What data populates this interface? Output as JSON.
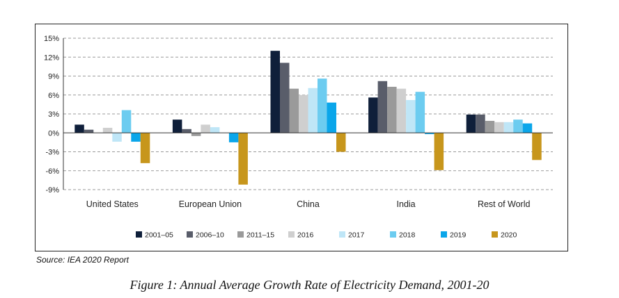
{
  "chart_data": {
    "type": "bar",
    "categories": [
      "United States",
      "European Union",
      "China",
      "India",
      "Rest of World"
    ],
    "series": [
      {
        "name": "2001–05",
        "color": "#0f1f3a",
        "values": [
          1.3,
          2.1,
          13.0,
          5.6,
          2.9
        ]
      },
      {
        "name": "2006–10",
        "color": "#595d6a",
        "values": [
          0.5,
          0.6,
          11.1,
          8.2,
          2.9
        ]
      },
      {
        "name": "2011–15",
        "color": "#9a9a9a",
        "values": [
          0.0,
          -0.5,
          7.0,
          7.3,
          1.9
        ]
      },
      {
        "name": "2016",
        "color": "#cfcfcf",
        "values": [
          0.8,
          1.3,
          6.0,
          7.0,
          1.7
        ]
      },
      {
        "name": "2017",
        "color": "#bfe6f7",
        "values": [
          -1.4,
          0.9,
          7.1,
          5.2,
          1.7
        ]
      },
      {
        "name": "2018",
        "color": "#6cccf0",
        "values": [
          3.6,
          0.0,
          8.6,
          6.5,
          2.1
        ]
      },
      {
        "name": "2019",
        "color": "#0aa6ea",
        "values": [
          -1.4,
          -1.5,
          4.8,
          -0.2,
          1.5
        ]
      },
      {
        "name": "2020",
        "color": "#c7961c",
        "values": [
          -4.8,
          -8.2,
          -3.0,
          -5.9,
          -4.3
        ]
      }
    ],
    "yticks": [
      "15%",
      "12%",
      "9%",
      "6%",
      "3%",
      "0%",
      "-3%",
      "-6%",
      "-9%"
    ],
    "ytick_values": [
      15,
      12,
      9,
      6,
      3,
      0,
      -3,
      -6,
      -9
    ],
    "ylim": [
      -9,
      15
    ],
    "grid": true,
    "legend_position": "bottom"
  },
  "source": "Source: IEA 2020 Report",
  "caption": "Figure 1: Annual Average Growth Rate of Electricity Demand, 2001-20"
}
